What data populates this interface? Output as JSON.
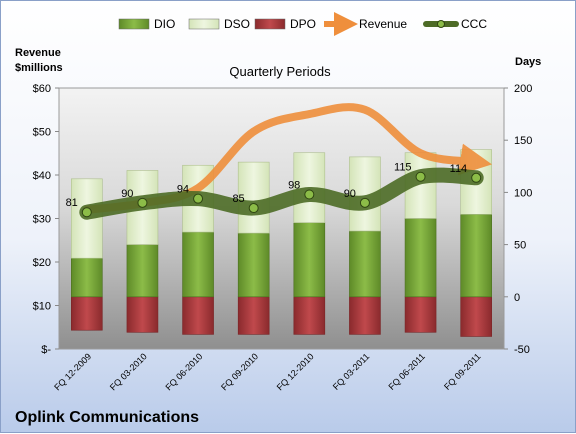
{
  "chart_data": {
    "type": "bar",
    "title": "Quarterly Periods",
    "company": "Oplink Communications",
    "left_axis_label": [
      "Revenue",
      "$millions"
    ],
    "right_axis_label": "Days",
    "left_ticks": [
      "$-",
      "$10",
      "$20",
      "$30",
      "$40",
      "$50",
      "$60"
    ],
    "right_ticks": [
      "-50",
      "0",
      "50",
      "100",
      "150",
      "200"
    ],
    "left_ylim": [
      0,
      60
    ],
    "right_ylim": [
      -50,
      200
    ],
    "categories": [
      "FQ 12-2009",
      "FQ 03-2010",
      "FQ 06-2010",
      "FQ 09-2010",
      "FQ 12-2010",
      "FQ 03-2011",
      "FQ 06-2011",
      "FQ 09-2011"
    ],
    "legend": [
      "DIO",
      "DSO",
      "DPO",
      "Revenue",
      "CCC"
    ],
    "legend_position": "top",
    "series": [
      {
        "name": "DIO",
        "axis": "right",
        "values": [
          37,
          50,
          62,
          61,
          71,
          63,
          75,
          79
        ],
        "color": "#77a33a"
      },
      {
        "name": "DSO",
        "axis": "right",
        "values": [
          76,
          71,
          64,
          68,
          67,
          71,
          63,
          62
        ],
        "color": "#e3efcf"
      },
      {
        "name": "DPO",
        "axis": "right",
        "values": [
          -32,
          -34,
          -36,
          -36,
          -36,
          -36,
          -34,
          -38
        ],
        "color": "#a8383b"
      },
      {
        "name": "Revenue",
        "axis": "left",
        "values": [
          32,
          33.5,
          37,
          50,
          54,
          55,
          45,
          43
        ],
        "color": "#ef8f3c"
      },
      {
        "name": "CCC",
        "axis": "right",
        "values": [
          81,
          90,
          94,
          85,
          98,
          90,
          115,
          114
        ],
        "labels": [
          "81",
          "90",
          "94",
          "85",
          "98",
          "90",
          "115",
          "114"
        ],
        "color": "#5a7a2b"
      }
    ],
    "grid": false
  }
}
